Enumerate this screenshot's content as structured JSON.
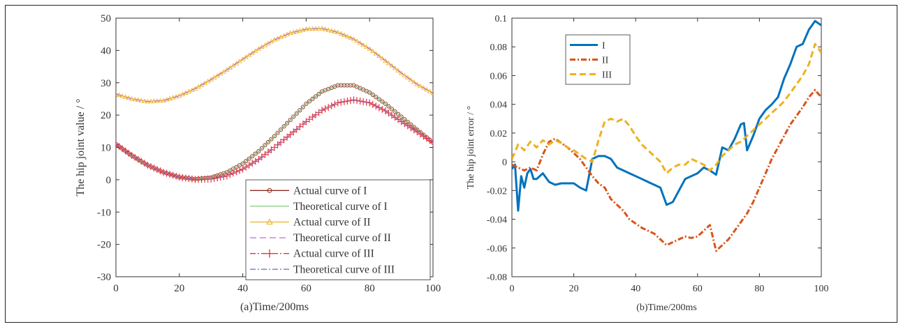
{
  "chart_data": [
    {
      "type": "line",
      "title": "",
      "xlabel": "(a)Time/200ms",
      "ylabel": "The hip joint value / °",
      "xlim": [
        0,
        100
      ],
      "ylim": [
        -30,
        50
      ],
      "xticks": [
        0,
        20,
        40,
        60,
        80,
        100
      ],
      "yticks": [
        -30,
        -20,
        -10,
        0,
        10,
        20,
        30,
        40,
        50
      ],
      "grid": false,
      "legend_position": "bottom-right",
      "series": [
        {
          "name": "Actual curve of I",
          "color": "#8B2E1E",
          "marker": "circle",
          "style": "solid",
          "x": [
            0,
            5,
            10,
            15,
            20,
            25,
            30,
            35,
            40,
            45,
            50,
            55,
            60,
            65,
            70,
            75,
            80,
            85,
            90,
            95,
            100
          ],
          "y": [
            11,
            7.5,
            4.5,
            2.3,
            0.8,
            0.2,
            0.7,
            2.3,
            5,
            8.8,
            13.5,
            18.5,
            23.5,
            27.3,
            29.2,
            29.2,
            27,
            23.5,
            19.5,
            15.5,
            11.5
          ]
        },
        {
          "name": "Theoretical curve of I",
          "color": "#7FCB7A",
          "style": "solid",
          "x": [
            0,
            5,
            10,
            15,
            20,
            25,
            30,
            35,
            40,
            45,
            50,
            55,
            60,
            65,
            70,
            75,
            80,
            85,
            90,
            95,
            100
          ],
          "y": [
            11,
            7.5,
            4.5,
            2.3,
            0.8,
            0.2,
            0.7,
            2.3,
            5,
            8.8,
            13.5,
            18.5,
            23.5,
            27.3,
            29.2,
            29.2,
            27,
            23.5,
            19.5,
            15.5,
            11.5
          ]
        },
        {
          "name": "Actual curve of II",
          "color": "#EDB120",
          "marker": "triangle",
          "style": "solid",
          "x": [
            0,
            5,
            10,
            15,
            20,
            25,
            30,
            35,
            40,
            45,
            50,
            55,
            60,
            65,
            70,
            75,
            80,
            85,
            90,
            95,
            100
          ],
          "y": [
            26.5,
            25,
            24.2,
            24.5,
            26,
            28.2,
            31,
            34,
            37.3,
            40.5,
            43.3,
            45.4,
            46.6,
            46.8,
            45.6,
            43.5,
            40.5,
            36.8,
            33,
            29.5,
            26.8
          ]
        },
        {
          "name": "Theoretical curve of II",
          "color": "#B86FD6",
          "style": "dashed",
          "x": [
            0,
            5,
            10,
            15,
            20,
            25,
            30,
            35,
            40,
            45,
            50,
            55,
            60,
            65,
            70,
            75,
            80,
            85,
            90,
            95,
            100
          ],
          "y": [
            26.5,
            25,
            24.2,
            24.5,
            26,
            28.2,
            31,
            34,
            37.3,
            40.5,
            43.3,
            45.4,
            46.6,
            46.8,
            45.6,
            43.5,
            40.5,
            36.8,
            33,
            29.5,
            26.8
          ]
        },
        {
          "name": "Actual curve of III",
          "color": "#E8323C",
          "marker": "plus",
          "style": "dashdot",
          "x": [
            0,
            5,
            10,
            15,
            20,
            25,
            30,
            35,
            40,
            45,
            50,
            55,
            60,
            65,
            70,
            75,
            80,
            85,
            90,
            95,
            100
          ],
          "y": [
            11,
            7.5,
            4.5,
            2.3,
            0.8,
            0.1,
            0.2,
            1.2,
            3.3,
            6.3,
            10,
            14,
            18,
            21.5,
            23.8,
            24.7,
            23.8,
            21.3,
            18,
            14.8,
            11.5
          ]
        },
        {
          "name": "Theoretical curve of III",
          "color": "#7777CC",
          "style": "dashdot",
          "x": [
            0,
            5,
            10,
            15,
            20,
            25,
            30,
            35,
            40,
            45,
            50,
            55,
            60,
            65,
            70,
            75,
            80,
            85,
            90,
            95,
            100
          ],
          "y": [
            11,
            7.5,
            4.5,
            2.3,
            0.8,
            0.1,
            0.2,
            1.2,
            3.3,
            6.3,
            10,
            14,
            18,
            21.5,
            23.8,
            24.7,
            23.8,
            21.3,
            18,
            14.8,
            11.5
          ]
        }
      ]
    },
    {
      "type": "line",
      "title": "",
      "xlabel": "(b)Time/200ms",
      "ylabel": "The hip joint error / °",
      "xlim": [
        0,
        100
      ],
      "ylim": [
        -0.08,
        0.1
      ],
      "xticks": [
        0,
        20,
        40,
        60,
        80,
        100
      ],
      "yticks": [
        -0.08,
        -0.06,
        -0.04,
        -0.02,
        0,
        0.02,
        0.04,
        0.06,
        0.08,
        0.1
      ],
      "ytick_labels": [
        "-0.08",
        "-0.06",
        "-0.04",
        "-0.02",
        "0",
        "0.02",
        "0.04",
        "0.06",
        "0.08",
        "0.1"
      ],
      "grid": false,
      "legend_position": "top-left",
      "series": [
        {
          "name": "I",
          "color": "#0072BD",
          "style": "solid",
          "x": [
            0,
            1,
            2,
            3,
            4,
            5,
            6,
            7,
            8,
            10,
            12,
            14,
            16,
            18,
            20,
            22,
            24,
            26,
            28,
            30,
            32,
            34,
            36,
            38,
            40,
            42,
            44,
            46,
            48,
            50,
            52,
            54,
            56,
            58,
            60,
            62,
            64,
            66,
            68,
            70,
            72,
            74,
            75,
            76,
            78,
            80,
            82,
            84,
            86,
            88,
            90,
            92,
            94,
            96,
            98,
            100
          ],
          "y": [
            -0.005,
            -0.002,
            -0.034,
            -0.01,
            -0.018,
            -0.008,
            -0.005,
            -0.012,
            -0.012,
            -0.008,
            -0.014,
            -0.016,
            -0.015,
            -0.015,
            -0.015,
            -0.018,
            -0.02,
            0.002,
            0.004,
            0.004,
            0.002,
            -0.004,
            -0.006,
            -0.008,
            -0.01,
            -0.012,
            -0.014,
            -0.016,
            -0.018,
            -0.03,
            -0.028,
            -0.02,
            -0.012,
            -0.01,
            -0.008,
            -0.004,
            -0.006,
            -0.009,
            0.01,
            0.008,
            0.016,
            0.026,
            0.027,
            0.008,
            0.018,
            0.03,
            0.036,
            0.04,
            0.045,
            0.058,
            0.068,
            0.08,
            0.082,
            0.092,
            0.098,
            0.095
          ]
        },
        {
          "name": "II",
          "color": "#D95319",
          "style": "dashdot",
          "x": [
            0,
            2,
            4,
            6,
            8,
            10,
            12,
            14,
            16,
            18,
            20,
            22,
            24,
            26,
            28,
            30,
            32,
            34,
            36,
            38,
            40,
            42,
            44,
            46,
            48,
            50,
            52,
            54,
            56,
            58,
            60,
            62,
            64,
            66,
            68,
            70,
            72,
            74,
            76,
            78,
            80,
            82,
            84,
            86,
            88,
            90,
            92,
            94,
            96,
            98,
            100
          ],
          "y": [
            -0.002,
            -0.004,
            -0.006,
            -0.004,
            -0.006,
            0.005,
            0.014,
            0.016,
            0.013,
            0.01,
            0.006,
            0.002,
            -0.004,
            -0.01,
            -0.015,
            -0.018,
            -0.026,
            -0.03,
            -0.034,
            -0.04,
            -0.043,
            -0.046,
            -0.048,
            -0.05,
            -0.054,
            -0.058,
            -0.056,
            -0.054,
            -0.052,
            -0.053,
            -0.052,
            -0.048,
            -0.044,
            -0.062,
            -0.058,
            -0.054,
            -0.048,
            -0.042,
            -0.036,
            -0.028,
            -0.018,
            -0.008,
            0.002,
            0.01,
            0.018,
            0.026,
            0.032,
            0.038,
            0.045,
            0.05,
            0.045
          ]
        },
        {
          "name": "III",
          "color": "#EDB120",
          "style": "dashed",
          "x": [
            0,
            2,
            4,
            6,
            8,
            10,
            12,
            14,
            16,
            18,
            20,
            22,
            24,
            26,
            28,
            30,
            32,
            34,
            36,
            38,
            40,
            42,
            44,
            46,
            48,
            50,
            52,
            54,
            56,
            58,
            60,
            62,
            64,
            66,
            68,
            70,
            72,
            74,
            76,
            78,
            80,
            82,
            84,
            86,
            88,
            90,
            92,
            94,
            96,
            98,
            100
          ],
          "y": [
            0.002,
            0.012,
            0.008,
            0.014,
            0.01,
            0.015,
            0.012,
            0.015,
            0.013,
            0.01,
            0.008,
            0.005,
            0.002,
            0.0,
            0.015,
            0.028,
            0.03,
            0.028,
            0.03,
            0.025,
            0.018,
            0.012,
            0.008,
            0.004,
            0.0,
            -0.008,
            -0.004,
            -0.002,
            -0.002,
            0.002,
            0.0,
            -0.002,
            -0.006,
            -0.002,
            0.004,
            0.008,
            0.012,
            0.014,
            0.018,
            0.022,
            0.026,
            0.03,
            0.034,
            0.038,
            0.042,
            0.048,
            0.054,
            0.06,
            0.068,
            0.082,
            0.076
          ]
        }
      ]
    }
  ]
}
